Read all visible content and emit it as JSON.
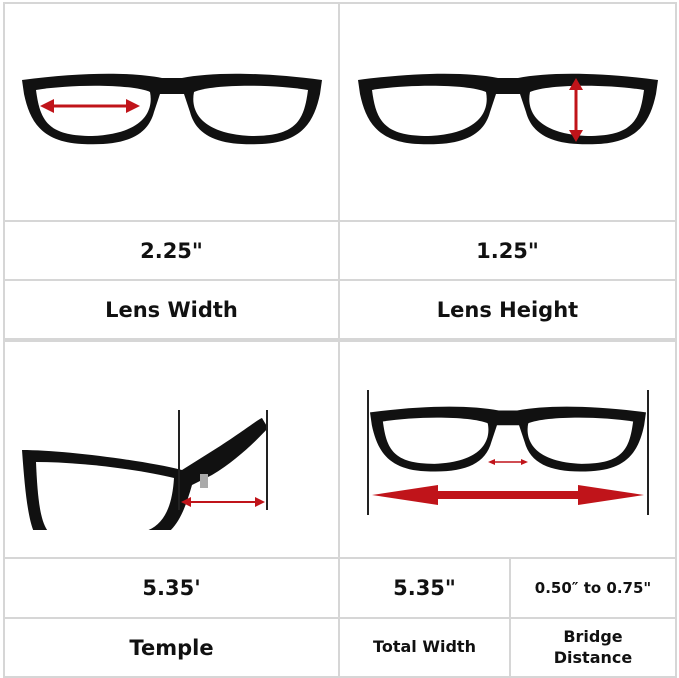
{
  "dimensions": [
    {
      "value": "2.25\"",
      "label": "Lens Width",
      "icon": "lens-width-diagram"
    },
    {
      "value": "1.25\"",
      "label": "Lens Height",
      "icon": "lens-height-diagram"
    },
    {
      "value": "5.35'",
      "label": "Temple",
      "icon": "temple-length-diagram"
    },
    {
      "value": "5.35\"",
      "label": "Total Width",
      "icon": "total-width-diagram"
    },
    {
      "value": "0.50″ to 0.75\"",
      "label_line1": "Bridge",
      "label_line2": "Distance"
    }
  ],
  "colors": {
    "arrow": "#c0141a",
    "frame": "#111111",
    "grid": "#d6d6d6"
  }
}
